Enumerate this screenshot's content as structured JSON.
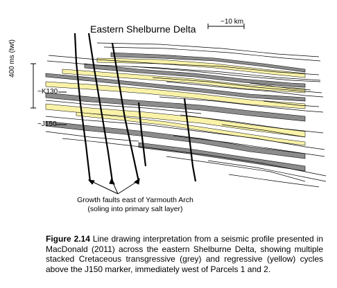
{
  "figure": {
    "title": "Eastern Shelburne Delta",
    "scale_bar_label": "~10 km",
    "time_scale_label": "400 ms (twt)",
    "horizon_labels": {
      "k130": "~K130",
      "j150": "~J150"
    },
    "annotation": {
      "line1": "Growth faults east of Yarmouth Arch",
      "line2": "(soling into primary salt layer)"
    },
    "colors": {
      "transgressive": "#8c8c8c",
      "regressive": "#f9f2a8",
      "lines": "#000000"
    }
  },
  "caption": {
    "label": "Figure 2.14",
    "text": " Line drawing interpretation from a seismic profile presented in MacDonald (2011) across the eastern Shelburne Delta, showing multiple stacked Cretaceous transgressive (grey) and regressive (yellow) cycles above the J150 marker, immediately west of Parcels 1 and 2."
  }
}
